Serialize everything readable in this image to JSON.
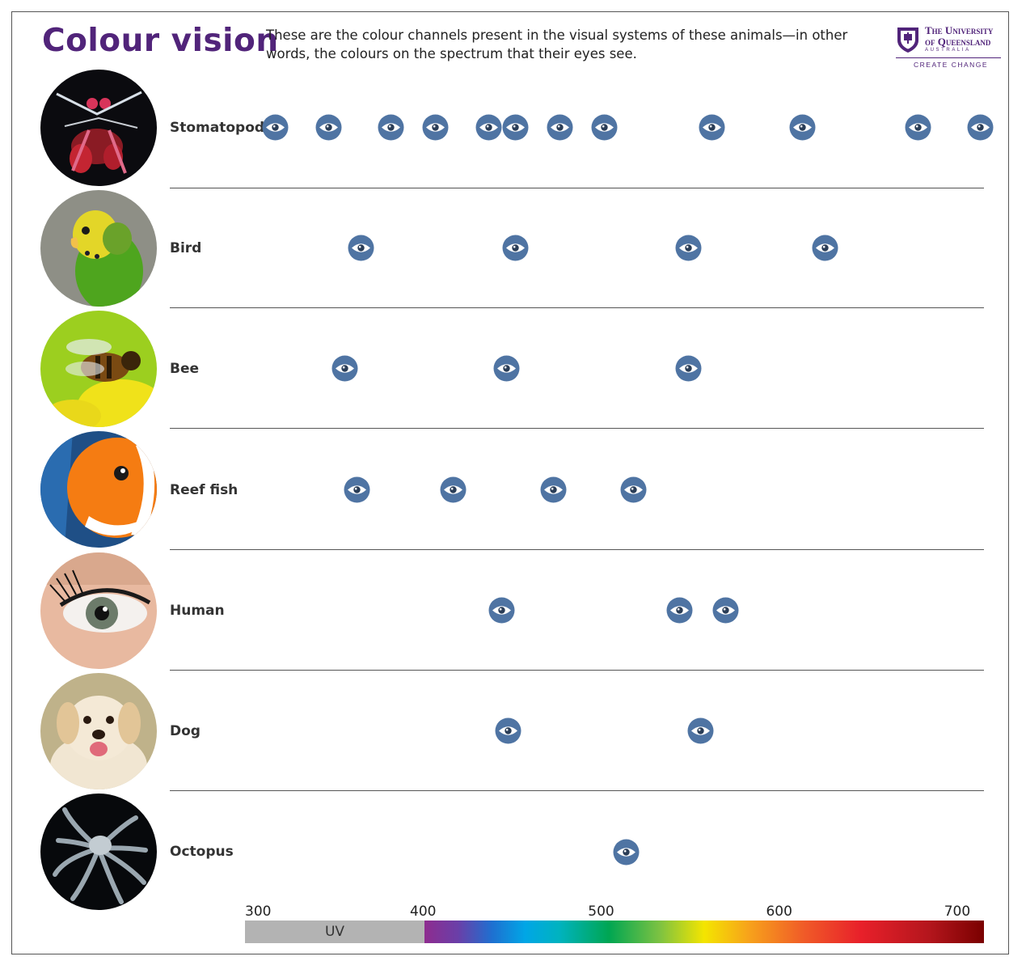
{
  "title": "Colour vision",
  "subtitle": "These are the colour channels present in the visual systems of these animals—in other words, the colours on the spectrum that their eyes see.",
  "logo": {
    "line1": "The University",
    "line2": "of Queensland",
    "line3": "AUSTRALIA",
    "tagline": "CREATE CHANGE"
  },
  "chart_data": {
    "type": "scatter",
    "title": "Colour vision",
    "xlabel": "",
    "ylabel": "",
    "xlim": [
      300,
      715
    ],
    "x_ticks": [
      300,
      400,
      500,
      600,
      700
    ],
    "bands": [
      {
        "label": "UV",
        "range": [
          300,
          400
        ],
        "color": "#b3b3b3"
      },
      {
        "label": "",
        "range": [
          400,
          715
        ],
        "color": "spectrum"
      }
    ],
    "marker": "eye-icon",
    "marker_color": "#4f74a3",
    "series": [
      {
        "name": "Stomatopod",
        "values": [
          317,
          347,
          382,
          407,
          437,
          452,
          477,
          502,
          562,
          613,
          678,
          713
        ]
      },
      {
        "name": "Bird",
        "values": [
          365,
          452,
          549,
          626
        ]
      },
      {
        "name": "Bee",
        "values": [
          356,
          447,
          549
        ]
      },
      {
        "name": "Reef fish",
        "values": [
          363,
          417,
          473,
          518
        ]
      },
      {
        "name": "Human",
        "values": [
          444,
          544,
          570
        ]
      },
      {
        "name": "Dog",
        "values": [
          448,
          556
        ]
      },
      {
        "name": "Octopus",
        "values": [
          514
        ]
      }
    ],
    "grid": false,
    "legend": "none"
  }
}
